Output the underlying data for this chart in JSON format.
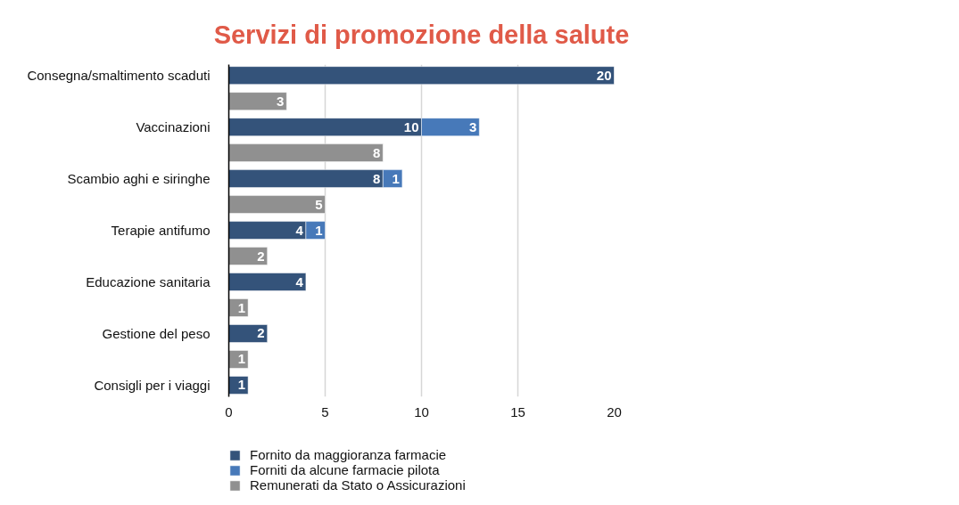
{
  "chart_data": {
    "type": "bar",
    "orientation": "horizontal",
    "stacked": true,
    "title": "Servizi di promozione della salute",
    "categories": [
      "Consegna/smaltimento scaduti",
      null,
      "Vaccinazioni",
      null,
      "Scambio aghi e siringhe",
      null,
      "Terapie antifumo",
      null,
      "Educazione sanitaria",
      null,
      "Gestione del peso",
      null,
      "Consigli per i viaggi"
    ],
    "series": [
      {
        "name": "Fornito da maggioranza farmacie",
        "color": "#34537a",
        "values": [
          20,
          null,
          10,
          null,
          8,
          null,
          4,
          null,
          4,
          null,
          2,
          null,
          1
        ]
      },
      {
        "name": "Forniti da alcune farmacie pilota",
        "color": "#4779b9",
        "values": [
          null,
          null,
          3,
          null,
          1,
          null,
          1,
          null,
          null,
          null,
          null,
          null,
          null
        ]
      },
      {
        "name": "Remunerati da Stato o Assicurazioni",
        "color": "#909090",
        "values": [
          null,
          3,
          null,
          8,
          null,
          5,
          null,
          2,
          null,
          1,
          null,
          1,
          null
        ]
      }
    ],
    "xlim": [
      0,
      20
    ],
    "xticks": [
      0,
      5,
      10,
      15,
      20
    ],
    "grid": "x",
    "legend": "bottom",
    "data_labels": true
  }
}
